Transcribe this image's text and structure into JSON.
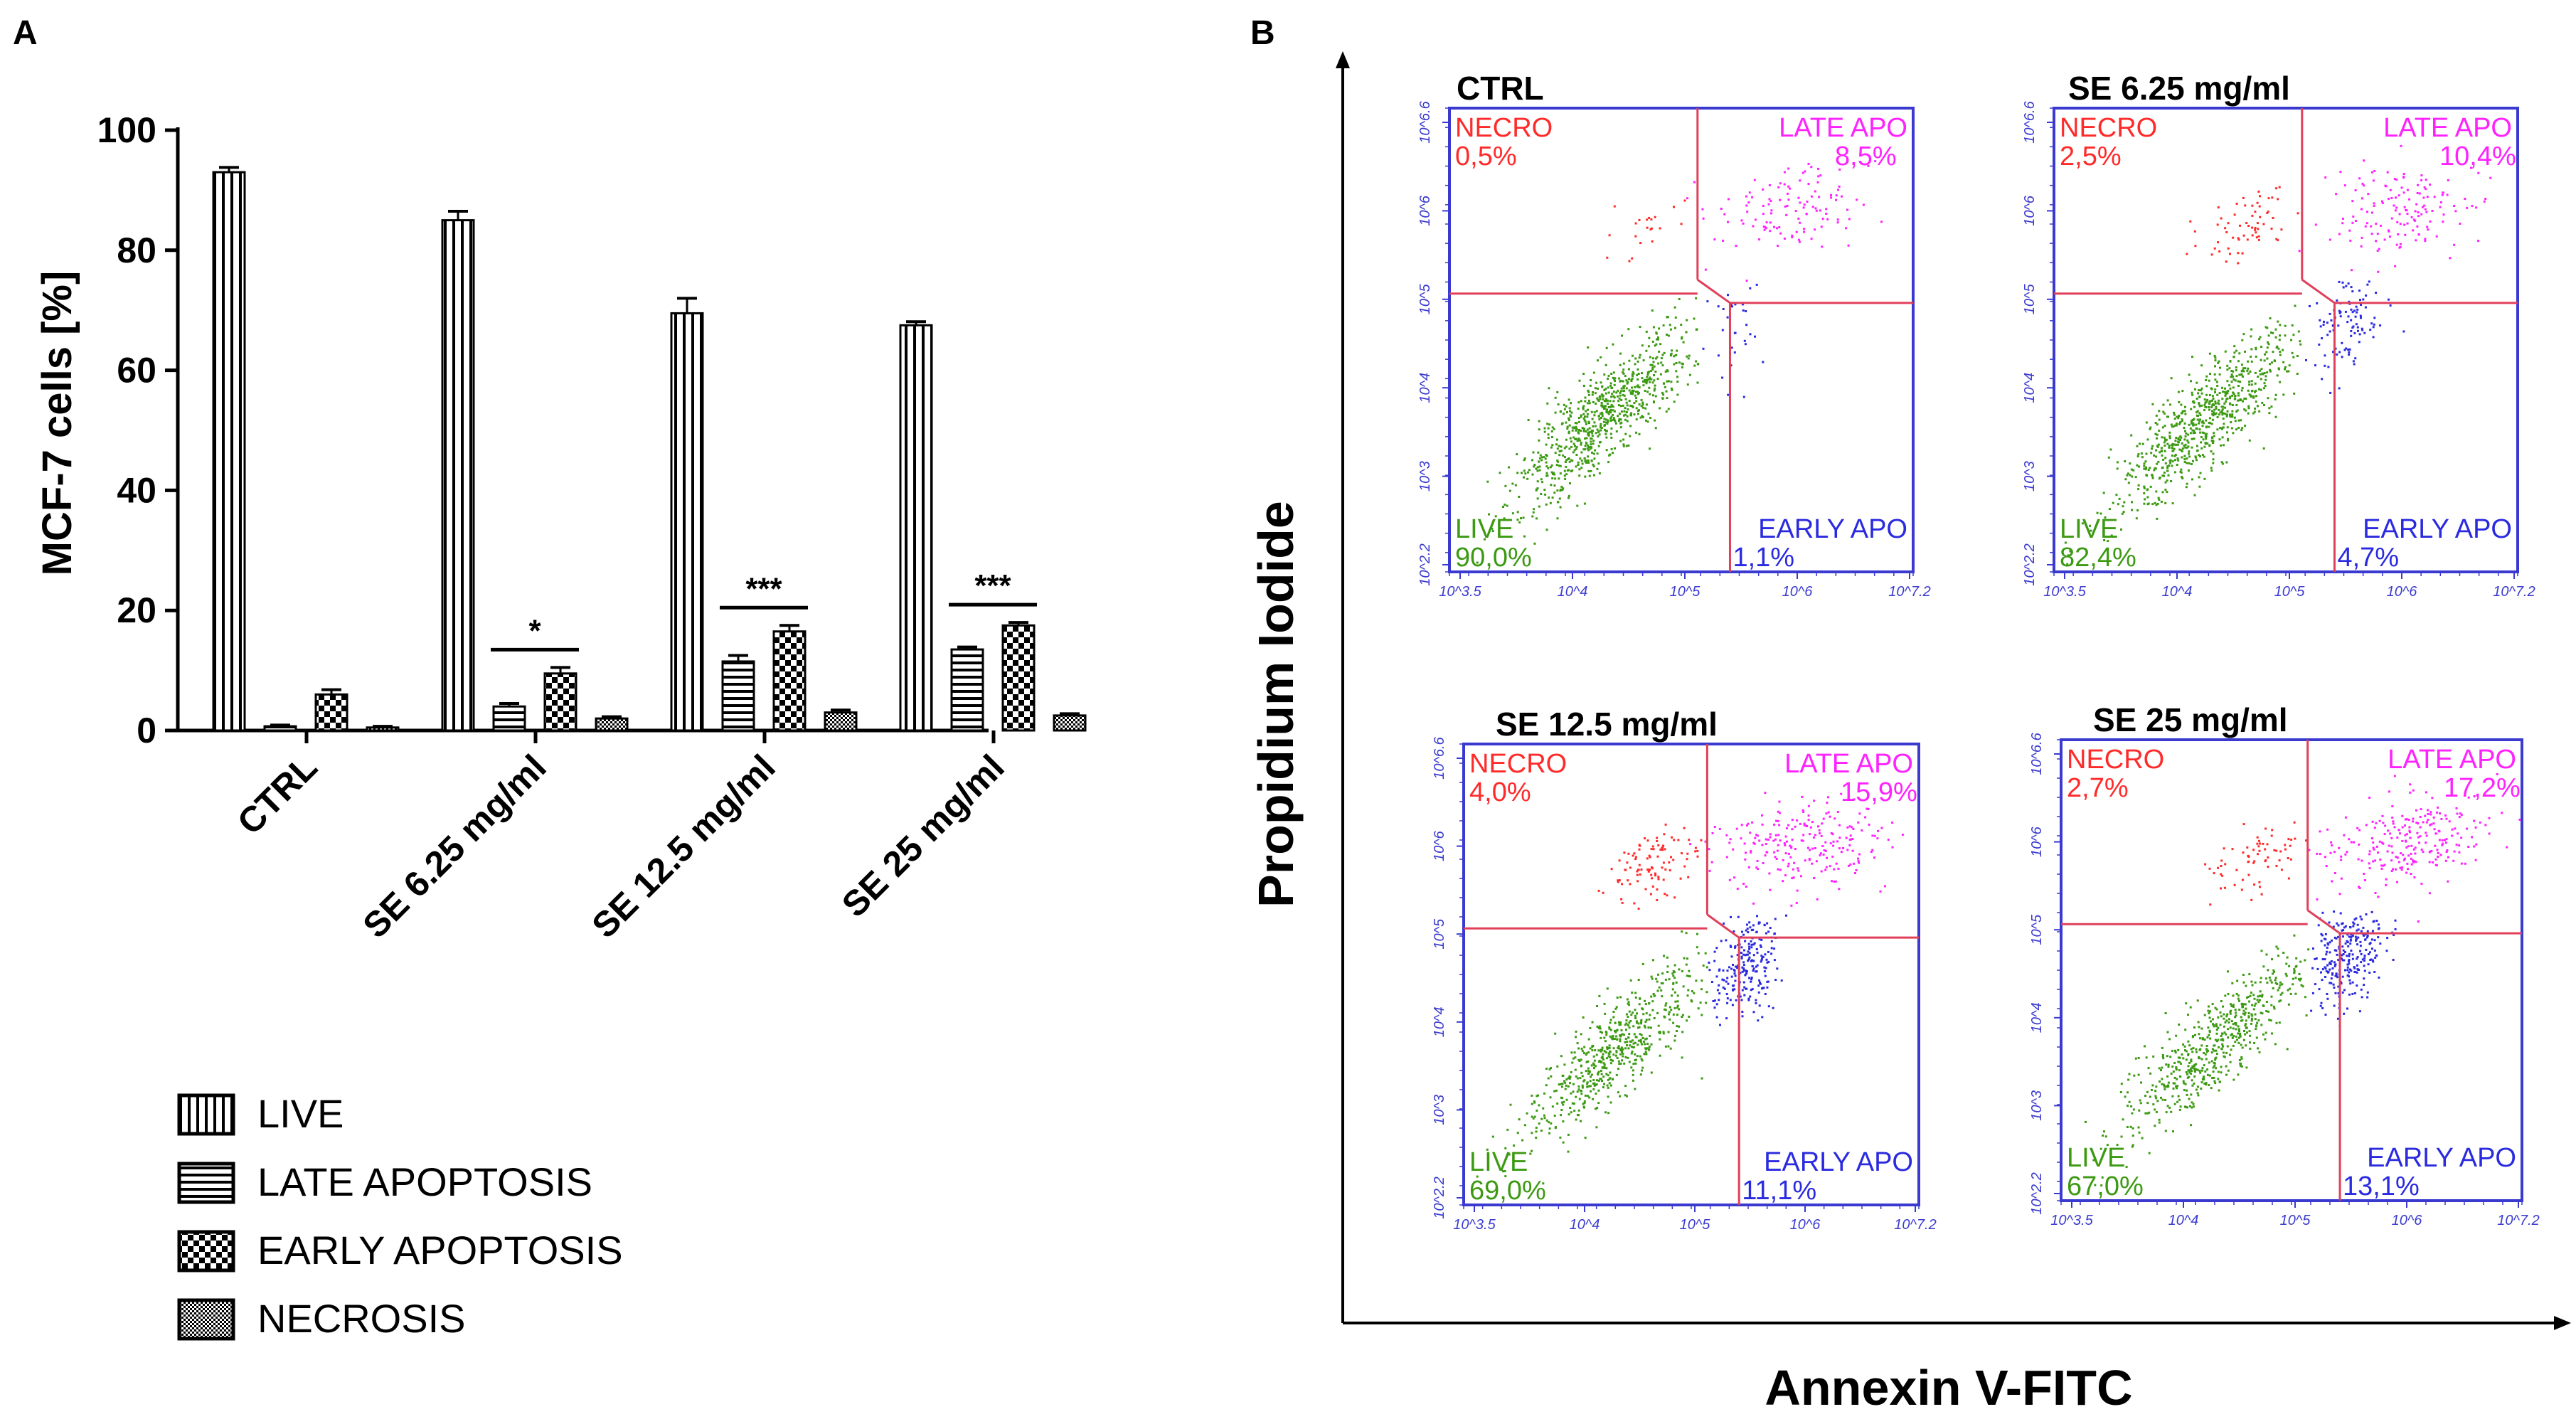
{
  "panel_a": {
    "letter": "A",
    "chart_data": {
      "type": "bar",
      "ylabel": "MCF-7 cells [%]",
      "ylim": [
        0,
        100
      ],
      "yticks": [
        0,
        20,
        40,
        60,
        80,
        100
      ],
      "categories": [
        "CTRL",
        "SE 6.25 mg/ml",
        "SE 12.5 mg/ml",
        "SE 25 mg/ml"
      ],
      "series": [
        {
          "name": "LIVE",
          "pattern": "vertical",
          "values": [
            93,
            85,
            69.5,
            67.5
          ],
          "errors": [
            0.8,
            1.5,
            2.5,
            0.6
          ]
        },
        {
          "name": "LATE APOPTOSIS",
          "pattern": "horizontal",
          "values": [
            0.7,
            4,
            11.5,
            13.5
          ],
          "errors": [
            0.2,
            0.5,
            1.0,
            0.4
          ]
        },
        {
          "name": "EARLY APOPTOSIS",
          "pattern": "checker",
          "values": [
            6,
            9.5,
            16.5,
            17.5
          ],
          "errors": [
            0.8,
            1.0,
            1.0,
            0.5
          ]
        },
        {
          "name": "NECROSIS",
          "pattern": "dense",
          "values": [
            0.5,
            2,
            3,
            2.5
          ],
          "errors": [
            0.2,
            0.3,
            0.4,
            0.3
          ]
        }
      ],
      "significance": [
        {
          "category": "SE 6.25 mg/ml",
          "label": "*"
        },
        {
          "category": "SE 12.5 mg/ml",
          "label": "***"
        },
        {
          "category": "SE 25 mg/ml",
          "label": "***"
        }
      ],
      "legend": [
        "LIVE",
        "LATE APOPTOSIS",
        "EARLY APOPTOSIS",
        "NECROSIS"
      ]
    }
  },
  "panel_b": {
    "letter": "B",
    "y_axis_label": "Propidium Iodide",
    "x_axis_label": "Annexin V-FITC",
    "colors": {
      "necro": "#ff2a2a",
      "late": "#ff22ff",
      "early": "#2a2ae0",
      "live": "#3c9a12",
      "frame": "#3a3ad0",
      "gate": "#e0405a"
    },
    "tick_labels_y": [
      "10^6.6",
      "10^6",
      "10^5",
      "10^4",
      "10^3",
      "10^2.2"
    ],
    "tick_labels_x": [
      "10^3.5",
      "10^4",
      "10^5",
      "10^6",
      "10^7.2"
    ],
    "plots": [
      {
        "title": "CTRL",
        "necro": "0,5%",
        "late": "8,5%",
        "live": "90,0%",
        "early": "1,1%"
      },
      {
        "title": "SE 6.25 mg/ml",
        "necro": "2,5%",
        "late": "10,4%",
        "live": "82,4%",
        "early": "4,7%"
      },
      {
        "title": "SE 12.5 mg/ml",
        "necro": "4,0%",
        "late": "15,9%",
        "live": "69,0%",
        "early": "11,1%"
      },
      {
        "title": "SE 25 mg/ml",
        "necro": "2,7%",
        "late": "17,2%",
        "live": "67,0%",
        "early": "13,1%"
      }
    ],
    "quadrant_names": {
      "necro": "NECRO",
      "late": "LATE APO",
      "live": "LIVE",
      "early": "EARLY APO"
    }
  }
}
